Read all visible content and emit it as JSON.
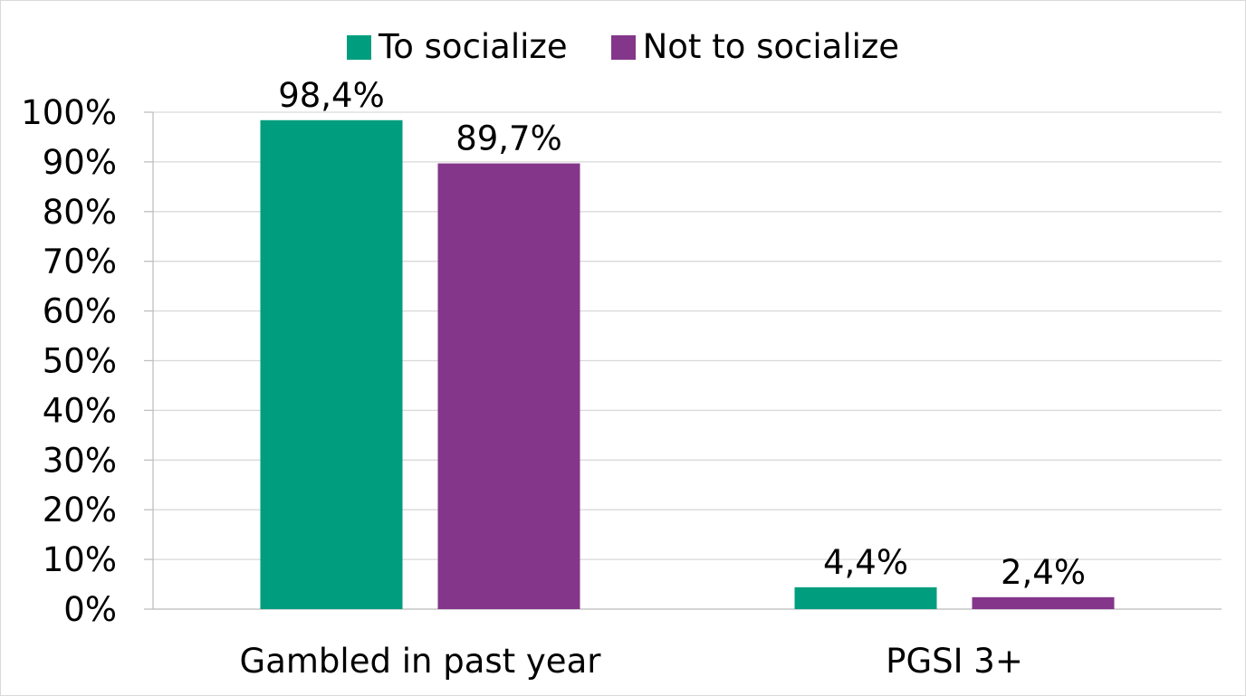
{
  "chart_data": {
    "type": "bar",
    "categories": [
      "Gambled in past year",
      "PGSI 3+"
    ],
    "series": [
      {
        "name": "To socialize",
        "color": "#009e7e",
        "values": [
          98.4,
          4.4
        ],
        "labels": [
          "98,4%",
          "4,4%"
        ]
      },
      {
        "name": "Not to socialize",
        "color": "#84368a",
        "values": [
          89.7,
          2.4
        ],
        "labels": [
          "89,7%",
          "2,4%"
        ]
      }
    ],
    "ylim": [
      0,
      100
    ],
    "yticks": [
      0,
      10,
      20,
      30,
      40,
      50,
      60,
      70,
      80,
      90,
      100
    ],
    "ytick_labels": [
      "0%",
      "10%",
      "20%",
      "30%",
      "40%",
      "50%",
      "60%",
      "70%",
      "80%",
      "90%",
      "100%"
    ],
    "grid": true,
    "legend_position": "top"
  }
}
